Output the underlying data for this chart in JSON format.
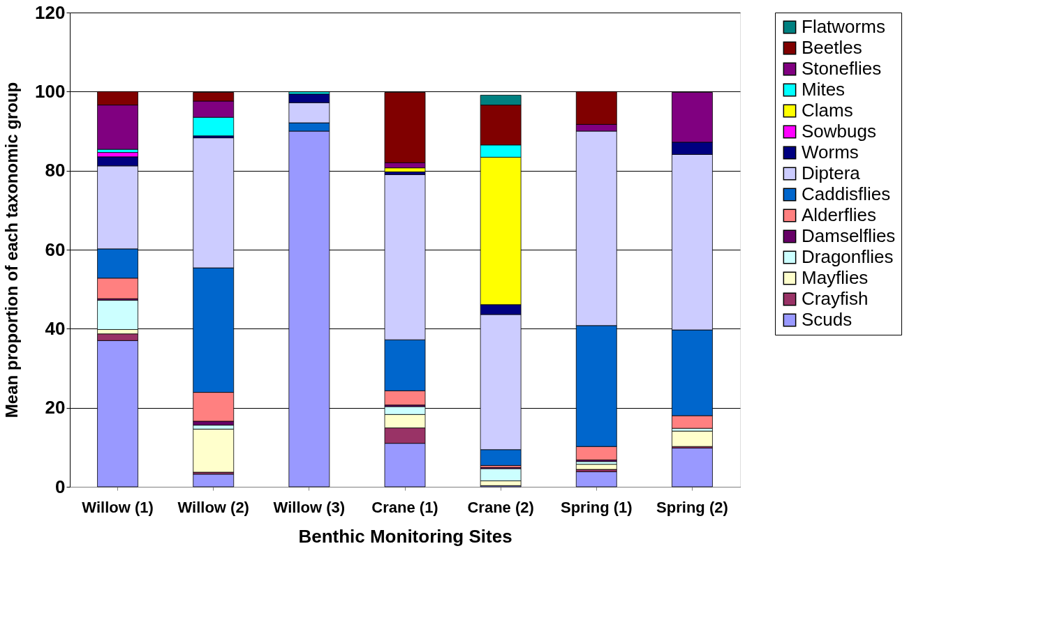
{
  "chart_data": {
    "type": "bar",
    "stacked": true,
    "xlabel": "Benthic Monitoring Sites",
    "ylabel": "Mean proportion of each taxonomic group",
    "categories": [
      "Willow (1)",
      "Willow (2)",
      "Willow (3)",
      "Crane (1)",
      "Crane (2)",
      "Spring (1)",
      "Spring (2)"
    ],
    "ylim": [
      0,
      120
    ],
    "yticks": [
      0,
      20,
      40,
      60,
      80,
      100,
      120
    ],
    "grid": "y",
    "legend": "right",
    "series": [
      {
        "name": "Scuds",
        "color": "#9999ff",
        "values": [
          37,
          3.2,
          90,
          11,
          0.3,
          3.8,
          9.8
        ]
      },
      {
        "name": "Crayfish",
        "color": "#993366",
        "values": [
          1.7,
          0.5,
          null,
          3.9,
          null,
          0.6,
          0.4
        ]
      },
      {
        "name": "Mayflies",
        "color": "#ffffcc",
        "values": [
          1.1,
          10.9,
          null,
          3.4,
          1.2,
          1.3,
          3.9
        ]
      },
      {
        "name": "Dragonflies",
        "color": "#ccffff",
        "values": [
          7.4,
          1.0,
          null,
          2.0,
          3.1,
          0.7,
          0.7
        ]
      },
      {
        "name": "Damselflies",
        "color": "#660066",
        "values": [
          0.4,
          1.0,
          null,
          0.4,
          0.3,
          0.4,
          null
        ]
      },
      {
        "name": "Alderflies",
        "color": "#ff8080",
        "values": [
          5.2,
          7.3,
          null,
          3.6,
          0.5,
          3.4,
          3.2
        ]
      },
      {
        "name": "Caddisflies",
        "color": "#0066cc",
        "values": [
          7.4,
          31.5,
          2.1,
          12.9,
          4.0,
          30.6,
          21.7
        ]
      },
      {
        "name": "Diptera",
        "color": "#ccccff",
        "values": [
          21,
          32.9,
          5.1,
          41.8,
          34.2,
          49.2,
          44.4
        ]
      },
      {
        "name": "Worms",
        "color": "#000080",
        "values": [
          2.3,
          0.5,
          2.2,
          0.7,
          2.5,
          null,
          3.1
        ]
      },
      {
        "name": "Sowbugs",
        "color": "#ff00ff",
        "values": [
          1.1,
          null,
          null,
          null,
          null,
          null,
          null
        ]
      },
      {
        "name": "Clams",
        "color": "#ffff00",
        "values": [
          null,
          null,
          null,
          1.0,
          37.3,
          null,
          null
        ]
      },
      {
        "name": "Mites",
        "color": "#00ffff",
        "values": [
          0.8,
          4.7,
          0.5,
          null,
          3.1,
          null,
          null
        ]
      },
      {
        "name": "Stoneflies",
        "color": "#800080",
        "values": [
          11.2,
          4.1,
          null,
          1.3,
          null,
          1.7,
          12.6
        ]
      },
      {
        "name": "Beetles",
        "color": "#800000",
        "values": [
          3.4,
          2.2,
          null,
          17.8,
          10.1,
          8.3,
          null
        ]
      },
      {
        "name": "Flatworms",
        "color": "#008080",
        "values": [
          null,
          null,
          null,
          null,
          2.5,
          null,
          null
        ]
      }
    ]
  }
}
